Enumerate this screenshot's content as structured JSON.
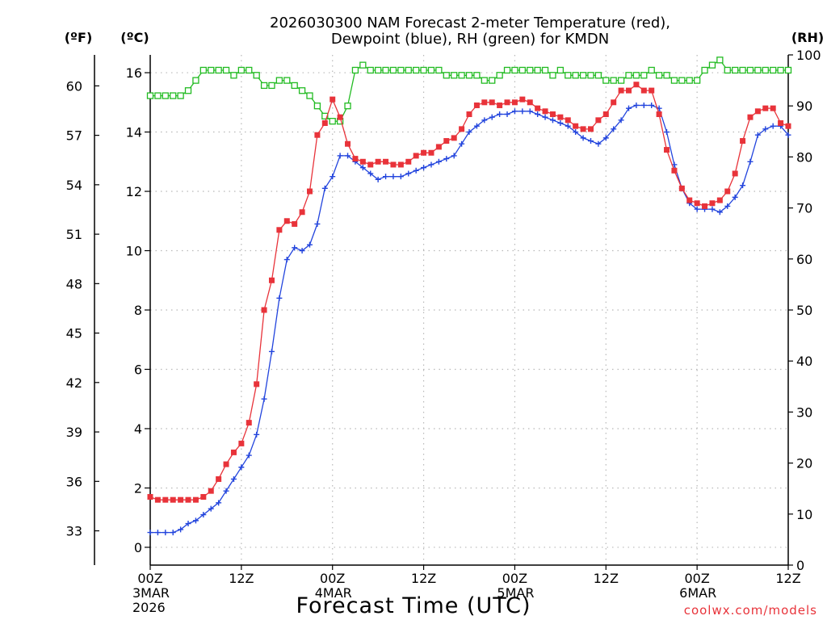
{
  "chart_data": {
    "type": "line",
    "title_line1": "2026030300 NAM Forecast 2-meter Temperature (red),",
    "title_line2": "Dewpoint (blue), RH (green) for KMDN",
    "xlabel": "Forecast Time (UTC)",
    "watermark": "coolwx.com/models",
    "axis_units": {
      "fahrenheit": "(ºF)",
      "celsius": "(ºC)",
      "rh": "(RH)"
    },
    "x_range_hours": [
      0,
      84
    ],
    "x_ticks": [
      {
        "hour": 0,
        "label": "00Z",
        "date": "3MAR",
        "year": "2026"
      },
      {
        "hour": 12,
        "label": "12Z",
        "date": "",
        "year": ""
      },
      {
        "hour": 24,
        "label": "00Z",
        "date": "4MAR",
        "year": ""
      },
      {
        "hour": 36,
        "label": "12Z",
        "date": "",
        "year": ""
      },
      {
        "hour": 48,
        "label": "00Z",
        "date": "5MAR",
        "year": ""
      },
      {
        "hour": 60,
        "label": "12Z",
        "date": "",
        "year": ""
      },
      {
        "hour": 72,
        "label": "00Z",
        "date": "6MAR",
        "year": ""
      },
      {
        "hour": 84,
        "label": "12Z",
        "date": "",
        "year": ""
      }
    ],
    "y_celsius": {
      "range": [
        -0.6,
        16.6
      ],
      "ticks": [
        0,
        2,
        4,
        6,
        8,
        10,
        12,
        14,
        16
      ]
    },
    "y_fahrenheit": {
      "ticks": [
        33,
        36,
        39,
        42,
        45,
        48,
        51,
        54,
        57,
        60
      ]
    },
    "y_rh": {
      "range": [
        0,
        100
      ],
      "ticks": [
        0,
        10,
        20,
        30,
        40,
        50,
        60,
        70,
        80,
        90,
        100
      ]
    },
    "series": [
      {
        "name": "Temperature",
        "unit": "C",
        "color": "#e8333a",
        "marker": "filled-square",
        "values": [
          1.7,
          1.6,
          1.6,
          1.6,
          1.6,
          1.6,
          1.6,
          1.7,
          1.9,
          2.3,
          2.8,
          3.2,
          3.5,
          4.2,
          5.5,
          8.0,
          9.0,
          10.7,
          11.0,
          10.9,
          11.3,
          12.0,
          13.9,
          14.3,
          15.1,
          14.5,
          13.6,
          13.1,
          13.0,
          12.9,
          13.0,
          13.0,
          12.9,
          12.9,
          13.0,
          13.2,
          13.3,
          13.3,
          13.5,
          13.7,
          13.8,
          14.1,
          14.6,
          14.9,
          15.0,
          15.0,
          14.9,
          15.0,
          15.0,
          15.1,
          15.0,
          14.8,
          14.7,
          14.6,
          14.5,
          14.4,
          14.2,
          14.1,
          14.1,
          14.4,
          14.6,
          15.0,
          15.4,
          15.4,
          15.6,
          15.4,
          15.4,
          14.6,
          13.4,
          12.7,
          12.1,
          11.7,
          11.6,
          11.5,
          11.6,
          11.7,
          12.0,
          12.6,
          13.7,
          14.5,
          14.7,
          14.8,
          14.8,
          14.3,
          14.2
        ]
      },
      {
        "name": "Dewpoint",
        "unit": "C",
        "color": "#2244dd",
        "marker": "plus",
        "values": [
          0.5,
          0.5,
          0.5,
          0.5,
          0.6,
          0.8,
          0.9,
          1.1,
          1.3,
          1.5,
          1.9,
          2.3,
          2.7,
          3.1,
          3.8,
          5.0,
          6.6,
          8.4,
          9.7,
          10.1,
          10.0,
          10.2,
          10.9,
          12.1,
          12.5,
          13.2,
          13.2,
          13.0,
          12.8,
          12.6,
          12.4,
          12.5,
          12.5,
          12.5,
          12.6,
          12.7,
          12.8,
          12.9,
          13.0,
          13.1,
          13.2,
          13.6,
          14.0,
          14.2,
          14.4,
          14.5,
          14.6,
          14.6,
          14.7,
          14.7,
          14.7,
          14.6,
          14.5,
          14.4,
          14.3,
          14.2,
          14.0,
          13.8,
          13.7,
          13.6,
          13.8,
          14.1,
          14.4,
          14.8,
          14.9,
          14.9,
          14.9,
          14.8,
          14.0,
          12.9,
          12.1,
          11.6,
          11.4,
          11.4,
          11.4,
          11.3,
          11.5,
          11.8,
          12.2,
          13.0,
          13.9,
          14.1,
          14.2,
          14.2,
          13.9
        ]
      },
      {
        "name": "Relative Humidity",
        "unit": "%",
        "color": "#22bb22",
        "marker": "open-square",
        "values": [
          92,
          92,
          92,
          92,
          92,
          93,
          95,
          97,
          97,
          97,
          97,
          96,
          97,
          97,
          96,
          94,
          94,
          95,
          95,
          94,
          93,
          92,
          90,
          88,
          87,
          87,
          90,
          97,
          98,
          97,
          97,
          97,
          97,
          97,
          97,
          97,
          97,
          97,
          97,
          96,
          96,
          96,
          96,
          96,
          95,
          95,
          96,
          97,
          97,
          97,
          97,
          97,
          97,
          96,
          97,
          96,
          96,
          96,
          96,
          96,
          95,
          95,
          95,
          96,
          96,
          96,
          97,
          96,
          96,
          95,
          95,
          95,
          95,
          97,
          98,
          99,
          97,
          97,
          97,
          97,
          97,
          97,
          97,
          97,
          97
        ]
      }
    ]
  }
}
